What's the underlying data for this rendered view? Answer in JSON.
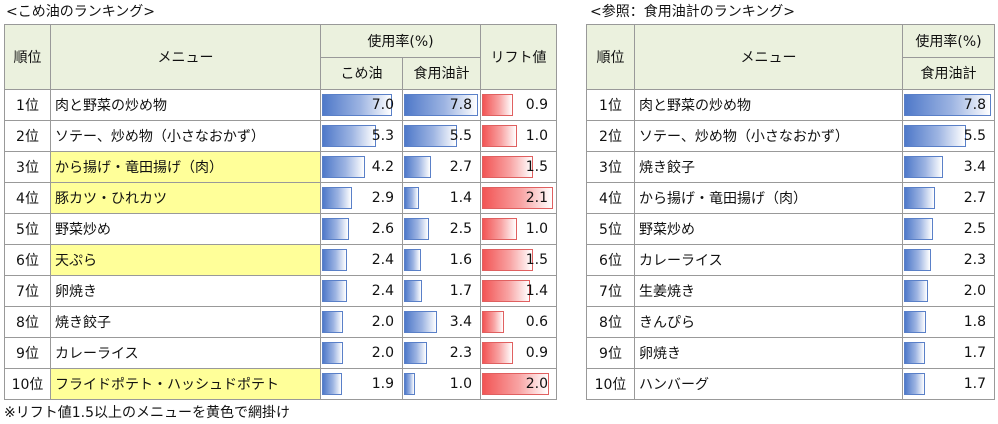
{
  "left": {
    "title": "<こめ油のランキング>",
    "headers": {
      "rank": "順位",
      "menu": "メニュー",
      "usage": "使用率(%)",
      "kome": "こめ油",
      "total": "食用油計",
      "lift": "リフト値"
    },
    "rows": [
      {
        "rank": "1位",
        "menu": "肉と野菜の炒め物",
        "kome": "7.0",
        "total": "7.8",
        "lift": "0.9"
      },
      {
        "rank": "2位",
        "menu": "ソテー、炒め物（小さなおかず）",
        "kome": "5.3",
        "total": "5.5",
        "lift": "1.0"
      },
      {
        "rank": "3位",
        "menu": "から揚げ・竜田揚げ（肉）",
        "kome": "4.2",
        "total": "2.7",
        "lift": "1.5"
      },
      {
        "rank": "4位",
        "menu": "豚カツ・ひれカツ",
        "kome": "2.9",
        "total": "1.4",
        "lift": "2.1"
      },
      {
        "rank": "5位",
        "menu": "野菜炒め",
        "kome": "2.6",
        "total": "2.5",
        "lift": "1.0"
      },
      {
        "rank": "6位",
        "menu": "天ぷら",
        "kome": "2.4",
        "total": "1.6",
        "lift": "1.5"
      },
      {
        "rank": "7位",
        "menu": "卵焼き",
        "kome": "2.4",
        "total": "1.7",
        "lift": "1.4"
      },
      {
        "rank": "8位",
        "menu": "焼き餃子",
        "kome": "2.0",
        "total": "3.4",
        "lift": "0.6"
      },
      {
        "rank": "9位",
        "menu": "カレーライス",
        "kome": "2.0",
        "total": "2.3",
        "lift": "0.9"
      },
      {
        "rank": "10位",
        "menu": "フライドポテト・ハッシュドポテト",
        "kome": "1.9",
        "total": "1.0",
        "lift": "2.0"
      }
    ]
  },
  "right": {
    "title": "<参照：食用油計のランキング>",
    "headers": {
      "rank": "順位",
      "menu": "メニュー",
      "usage": "使用率(%)",
      "total": "食用油計"
    },
    "rows": [
      {
        "rank": "1位",
        "menu": "肉と野菜の炒め物",
        "total": "7.8"
      },
      {
        "rank": "2位",
        "menu": "ソテー、炒め物（小さなおかず）",
        "total": "5.5"
      },
      {
        "rank": "3位",
        "menu": "焼き餃子",
        "total": "3.4"
      },
      {
        "rank": "4位",
        "menu": "から揚げ・竜田揚げ（肉）",
        "total": "2.7"
      },
      {
        "rank": "5位",
        "menu": "野菜炒め",
        "total": "2.5"
      },
      {
        "rank": "6位",
        "menu": "カレーライス",
        "total": "2.3"
      },
      {
        "rank": "7位",
        "menu": "生姜焼き",
        "total": "2.0"
      },
      {
        "rank": "8位",
        "menu": "きんぴら",
        "total": "1.8"
      },
      {
        "rank": "9位",
        "menu": "卵焼き",
        "total": "1.7"
      },
      {
        "rank": "10位",
        "menu": "ハンバーグ",
        "total": "1.7"
      }
    ]
  },
  "note": "※リフト値1.5以上のメニューを黄色で網掛け",
  "highlight_threshold": 1.5,
  "scale": {
    "usage_max": 8.0,
    "lift_max": 2.2
  },
  "colors": {
    "blue_bar": "#4f79c9",
    "red_bar": "#f25555",
    "highlight": "#ffff99",
    "header_bg": "#ebf1de"
  }
}
